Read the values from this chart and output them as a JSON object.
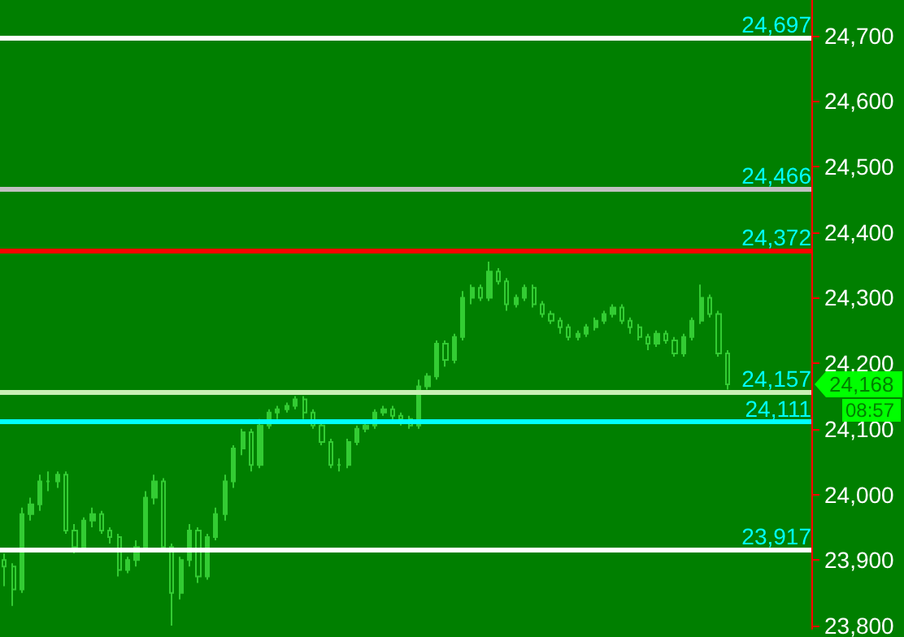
{
  "chart_data": {
    "type": "candlestick",
    "color": "#33cc33",
    "categories": [
      null,
      null,
      null,
      null,
      null,
      null,
      null,
      null,
      null,
      null,
      null,
      null,
      null,
      null,
      null,
      null,
      null,
      null,
      null,
      null,
      null,
      null,
      null,
      null,
      null,
      null,
      null,
      null,
      null,
      null,
      null,
      null,
      null,
      null,
      null,
      null,
      null,
      null,
      null,
      null,
      null,
      null,
      null,
      null,
      null,
      null,
      null,
      null,
      null,
      null,
      null,
      null,
      null,
      null,
      null,
      null,
      null,
      null,
      null,
      null,
      null,
      null,
      null,
      null,
      null,
      null,
      null,
      null,
      null,
      null,
      null,
      null,
      null,
      null,
      null,
      null,
      null,
      null,
      null,
      null,
      null,
      null,
      null,
      null,
      null,
      null,
      null,
      null,
      null,
      null,
      null,
      null
    ],
    "ohlc": [
      [
        23900,
        23910,
        23860,
        23890
      ],
      [
        23890,
        23895,
        23830,
        23855
      ],
      [
        23855,
        23980,
        23850,
        23970
      ],
      [
        23970,
        23995,
        23960,
        23985
      ],
      [
        23985,
        24030,
        23975,
        24020
      ],
      [
        24020,
        24035,
        24005,
        24020
      ],
      [
        24020,
        24035,
        24010,
        24030
      ],
      [
        24030,
        24035,
        23940,
        23945
      ],
      [
        23945,
        23955,
        23910,
        23920
      ],
      [
        23920,
        23965,
        23915,
        23960
      ],
      [
        23960,
        23980,
        23950,
        23970
      ],
      [
        23970,
        23975,
        23940,
        23945
      ],
      [
        23945,
        23950,
        23925,
        23935
      ],
      [
        23935,
        23940,
        23875,
        23885
      ],
      [
        23885,
        23905,
        23880,
        23900
      ],
      [
        23900,
        23930,
        23890,
        23920
      ],
      [
        23920,
        24005,
        23915,
        23995
      ],
      [
        23995,
        24030,
        23985,
        24020
      ],
      [
        24020,
        24025,
        23915,
        23920
      ],
      [
        23920,
        23925,
        23800,
        23850
      ],
      [
        23850,
        23905,
        23840,
        23900
      ],
      [
        23900,
        23955,
        23890,
        23945
      ],
      [
        23945,
        23950,
        23865,
        23875
      ],
      [
        23875,
        23940,
        23870,
        23935
      ],
      [
        23935,
        23980,
        23930,
        23970
      ],
      [
        23970,
        24030,
        23960,
        24020
      ],
      [
        24020,
        24075,
        24010,
        24070
      ],
      [
        24070,
        24100,
        24060,
        24095
      ],
      [
        24095,
        24100,
        24035,
        24045
      ],
      [
        24045,
        24115,
        24040,
        24105
      ],
      [
        24105,
        24130,
        24100,
        24125
      ],
      [
        24125,
        24135,
        24115,
        24130
      ],
      [
        24130,
        24140,
        24125,
        24135
      ],
      [
        24135,
        24150,
        24130,
        24145
      ],
      [
        24145,
        24150,
        24115,
        24125
      ],
      [
        24125,
        24130,
        24100,
        24105
      ],
      [
        24105,
        24110,
        24075,
        24080
      ],
      [
        24080,
        24085,
        24040,
        24045
      ],
      [
        24045,
        24055,
        24035,
        24045
      ],
      [
        24045,
        24085,
        24040,
        24080
      ],
      [
        24080,
        24105,
        24075,
        24100
      ],
      [
        24100,
        24110,
        24095,
        24105
      ],
      [
        24105,
        24130,
        24100,
        24125
      ],
      [
        24125,
        24135,
        24120,
        24130
      ],
      [
        24130,
        24135,
        24110,
        24120
      ],
      [
        24120,
        24125,
        24105,
        24115
      ],
      [
        24115,
        24120,
        24100,
        24105
      ],
      [
        24105,
        24175,
        24100,
        24165
      ],
      [
        24165,
        24185,
        24160,
        24180
      ],
      [
        24180,
        24235,
        24175,
        24230
      ],
      [
        24230,
        24235,
        24195,
        24205
      ],
      [
        24205,
        24245,
        24200,
        24240
      ],
      [
        24240,
        24310,
        24235,
        24300
      ],
      [
        24300,
        24320,
        24290,
        24315
      ],
      [
        24315,
        24320,
        24295,
        24300
      ],
      [
        24300,
        24355,
        24295,
        24340
      ],
      [
        24340,
        24345,
        24320,
        24325
      ],
      [
        24325,
        24330,
        24280,
        24290
      ],
      [
        24290,
        24305,
        24285,
        24300
      ],
      [
        24300,
        24320,
        24295,
        24315
      ],
      [
        24315,
        24320,
        24285,
        24290
      ],
      [
        24290,
        24295,
        24270,
        24275
      ],
      [
        24275,
        24280,
        24260,
        24265
      ],
      [
        24265,
        24270,
        24245,
        24255
      ],
      [
        24255,
        24260,
        24235,
        24240
      ],
      [
        24240,
        24250,
        24235,
        24245
      ],
      [
        24245,
        24260,
        24240,
        24255
      ],
      [
        24255,
        24270,
        24250,
        24265
      ],
      [
        24265,
        24280,
        24260,
        24275
      ],
      [
        24275,
        24290,
        24270,
        24285
      ],
      [
        24285,
        24290,
        24260,
        24265
      ],
      [
        24265,
        24270,
        24245,
        24255
      ],
      [
        24255,
        24260,
        24235,
        24240
      ],
      [
        24240,
        24245,
        24220,
        24230
      ],
      [
        24230,
        24250,
        24225,
        24245
      ],
      [
        24245,
        24250,
        24230,
        24235
      ],
      [
        24235,
        24240,
        24210,
        24215
      ],
      [
        24215,
        24245,
        24210,
        24240
      ],
      [
        24240,
        24270,
        24235,
        24265
      ],
      [
        24265,
        24320,
        24260,
        24300
      ],
      [
        24300,
        24305,
        24270,
        24275
      ],
      [
        24275,
        24280,
        24210,
        24215
      ],
      [
        24215,
        24220,
        24160,
        24168
      ],
      null,
      null,
      null,
      null,
      null,
      null,
      null,
      null,
      null
    ],
    "ylim": [
      23795,
      24754
    ],
    "yticks": [
      {
        "value": 23800,
        "label": "23,800"
      },
      {
        "value": 23900,
        "label": "23,900"
      },
      {
        "value": 24000,
        "label": "24,000"
      },
      {
        "value": 24100,
        "label": "24,100"
      },
      {
        "value": 24200,
        "label": "24,200"
      },
      {
        "value": 24300,
        "label": "24,300"
      },
      {
        "value": 24400,
        "label": "24,400"
      },
      {
        "value": 24500,
        "label": "24,500"
      },
      {
        "value": 24600,
        "label": "24,600"
      },
      {
        "value": 24700,
        "label": "24,700"
      }
    ],
    "tick_labels": "y",
    "grid": false,
    "ref_lines": [
      {
        "axis": "y",
        "value": 24697,
        "label": "24,697",
        "color": "#ffffff"
      },
      {
        "axis": "y",
        "value": 24466,
        "label": "24,466",
        "color": "#c0c0c0"
      },
      {
        "axis": "y",
        "value": 24372,
        "label": "24,372",
        "color": "#ff0000"
      },
      {
        "axis": "y",
        "value": 24157,
        "label": "24,157",
        "color": "#c8f0b4"
      },
      {
        "axis": "y",
        "value": 24111,
        "label": "24,111",
        "color": "#00ffff"
      },
      {
        "axis": "y",
        "value": 23917,
        "label": "23,917",
        "color": "#ffffff"
      }
    ],
    "annotations": [
      "24,168",
      "08:57"
    ]
  }
}
